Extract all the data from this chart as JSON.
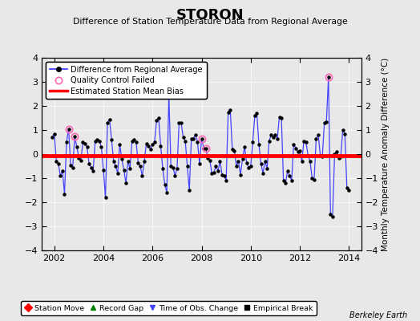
{
  "title": "STORON",
  "subtitle": "Difference of Station Temperature Data from Regional Average",
  "ylabel_right": "Monthly Temperature Anomaly Difference (°C)",
  "bias_value": -0.05,
  "ylim": [
    -4,
    4
  ],
  "xlim": [
    2001.5,
    2014.5
  ],
  "xticks": [
    2002,
    2004,
    2006,
    2008,
    2010,
    2012,
    2014
  ],
  "yticks": [
    -4,
    -3,
    -2,
    -1,
    0,
    1,
    2,
    3,
    4
  ],
  "background_color": "#e8e8e8",
  "plot_bg_color": "#e8e8e8",
  "line_color": "#4444ff",
  "marker_color": "#000000",
  "bias_color": "#ff0000",
  "qc_color": "#ff69b4",
  "watermark": "Berkeley Earth",
  "legend1_entries": [
    {
      "label": "Difference from Regional Average",
      "color": "#4444ff",
      "marker": "o",
      "lw": 1.5
    },
    {
      "label": "Quality Control Failed",
      "color": "#ff69b4",
      "marker": "o",
      "lw": 0
    },
    {
      "label": "Estimated Station Mean Bias",
      "color": "#ff0000",
      "marker": null,
      "lw": 2.5
    }
  ],
  "legend2_entries": [
    {
      "label": "Station Move",
      "color": "#ff0000",
      "marker": "D"
    },
    {
      "label": "Record Gap",
      "color": "#008000",
      "marker": "^"
    },
    {
      "label": "Time of Obs. Change",
      "color": "#4444ff",
      "marker": "v"
    },
    {
      "label": "Empirical Break",
      "color": "#000000",
      "marker": "s"
    }
  ],
  "qc_points": [
    [
      2002.583,
      1.05
    ],
    [
      2002.833,
      0.72
    ],
    [
      2008.0,
      0.65
    ],
    [
      2008.167,
      0.25
    ],
    [
      2013.167,
      3.2
    ]
  ],
  "time_series": [
    [
      2001.917,
      0.7
    ],
    [
      2002.0,
      0.85
    ],
    [
      2002.083,
      -0.3
    ],
    [
      2002.167,
      -0.4
    ],
    [
      2002.25,
      -0.9
    ],
    [
      2002.333,
      -0.7
    ],
    [
      2002.417,
      -1.65
    ],
    [
      2002.5,
      0.5
    ],
    [
      2002.583,
      1.05
    ],
    [
      2002.667,
      -0.45
    ],
    [
      2002.75,
      -0.55
    ],
    [
      2002.833,
      0.72
    ],
    [
      2002.917,
      0.3
    ],
    [
      2003.0,
      -0.15
    ],
    [
      2003.083,
      -0.25
    ],
    [
      2003.167,
      0.5
    ],
    [
      2003.25,
      0.45
    ],
    [
      2003.333,
      0.3
    ],
    [
      2003.417,
      -0.4
    ],
    [
      2003.5,
      -0.55
    ],
    [
      2003.583,
      -0.7
    ],
    [
      2003.667,
      0.55
    ],
    [
      2003.75,
      0.6
    ],
    [
      2003.833,
      0.55
    ],
    [
      2003.917,
      0.3
    ],
    [
      2004.0,
      -0.65
    ],
    [
      2004.083,
      -1.8
    ],
    [
      2004.167,
      1.3
    ],
    [
      2004.25,
      1.45
    ],
    [
      2004.333,
      0.6
    ],
    [
      2004.417,
      -0.3
    ],
    [
      2004.5,
      -0.5
    ],
    [
      2004.583,
      -0.8
    ],
    [
      2004.667,
      0.4
    ],
    [
      2004.75,
      -0.2
    ],
    [
      2004.833,
      -0.65
    ],
    [
      2004.917,
      -1.2
    ],
    [
      2005.0,
      -0.3
    ],
    [
      2005.083,
      -0.6
    ],
    [
      2005.167,
      0.55
    ],
    [
      2005.25,
      0.6
    ],
    [
      2005.333,
      0.5
    ],
    [
      2005.417,
      -0.35
    ],
    [
      2005.5,
      -0.5
    ],
    [
      2005.583,
      -0.9
    ],
    [
      2005.667,
      -0.3
    ],
    [
      2005.75,
      0.45
    ],
    [
      2005.833,
      0.35
    ],
    [
      2005.917,
      0.2
    ],
    [
      2006.0,
      0.4
    ],
    [
      2006.083,
      0.5
    ],
    [
      2006.167,
      1.4
    ],
    [
      2006.25,
      1.5
    ],
    [
      2006.333,
      0.35
    ],
    [
      2006.417,
      -0.6
    ],
    [
      2006.5,
      -1.25
    ],
    [
      2006.583,
      -1.6
    ],
    [
      2006.667,
      2.5
    ],
    [
      2006.75,
      -0.5
    ],
    [
      2006.833,
      -0.55
    ],
    [
      2006.917,
      -0.9
    ],
    [
      2007.0,
      -0.6
    ],
    [
      2007.083,
      1.3
    ],
    [
      2007.167,
      1.3
    ],
    [
      2007.25,
      0.7
    ],
    [
      2007.333,
      0.55
    ],
    [
      2007.417,
      -0.5
    ],
    [
      2007.5,
      -1.5
    ],
    [
      2007.583,
      0.65
    ],
    [
      2007.667,
      0.65
    ],
    [
      2007.75,
      0.8
    ],
    [
      2007.833,
      0.5
    ],
    [
      2007.917,
      -0.4
    ],
    [
      2008.0,
      0.65
    ],
    [
      2008.083,
      0.25
    ],
    [
      2008.167,
      0.25
    ],
    [
      2008.25,
      -0.15
    ],
    [
      2008.333,
      -0.25
    ],
    [
      2008.417,
      -0.8
    ],
    [
      2008.5,
      -0.75
    ],
    [
      2008.583,
      -0.5
    ],
    [
      2008.667,
      -0.7
    ],
    [
      2008.75,
      -0.3
    ],
    [
      2008.833,
      -0.85
    ],
    [
      2008.917,
      -0.9
    ],
    [
      2009.0,
      -1.1
    ],
    [
      2009.083,
      1.75
    ],
    [
      2009.167,
      1.85
    ],
    [
      2009.25,
      0.2
    ],
    [
      2009.333,
      0.15
    ],
    [
      2009.417,
      -0.5
    ],
    [
      2009.5,
      -0.3
    ],
    [
      2009.583,
      -0.85
    ],
    [
      2009.667,
      -0.2
    ],
    [
      2009.75,
      0.3
    ],
    [
      2009.833,
      -0.35
    ],
    [
      2009.917,
      -0.55
    ],
    [
      2010.0,
      -0.5
    ],
    [
      2010.083,
      0.5
    ],
    [
      2010.167,
      1.6
    ],
    [
      2010.25,
      1.7
    ],
    [
      2010.333,
      0.4
    ],
    [
      2010.417,
      -0.4
    ],
    [
      2010.5,
      -0.8
    ],
    [
      2010.583,
      -0.3
    ],
    [
      2010.667,
      -0.6
    ],
    [
      2010.75,
      0.55
    ],
    [
      2010.833,
      0.8
    ],
    [
      2010.917,
      0.7
    ],
    [
      2011.0,
      0.8
    ],
    [
      2011.083,
      0.65
    ],
    [
      2011.167,
      1.55
    ],
    [
      2011.25,
      1.5
    ],
    [
      2011.333,
      -1.1
    ],
    [
      2011.417,
      -1.2
    ],
    [
      2011.5,
      -0.7
    ],
    [
      2011.583,
      -0.9
    ],
    [
      2011.667,
      -1.1
    ],
    [
      2011.75,
      0.4
    ],
    [
      2011.833,
      0.25
    ],
    [
      2011.917,
      0.1
    ],
    [
      2012.0,
      0.15
    ],
    [
      2012.083,
      -0.3
    ],
    [
      2012.167,
      0.55
    ],
    [
      2012.25,
      0.5
    ],
    [
      2012.333,
      -0.05
    ],
    [
      2012.417,
      -0.3
    ],
    [
      2012.5,
      -1.0
    ],
    [
      2012.583,
      -1.05
    ],
    [
      2012.667,
      0.65
    ],
    [
      2012.75,
      0.8
    ],
    [
      2012.833,
      -0.05
    ],
    [
      2012.917,
      -0.1
    ],
    [
      2013.0,
      1.3
    ],
    [
      2013.083,
      1.35
    ],
    [
      2013.167,
      3.2
    ],
    [
      2013.25,
      -2.5
    ],
    [
      2013.333,
      -2.6
    ],
    [
      2013.417,
      0.0
    ],
    [
      2013.5,
      0.1
    ],
    [
      2013.583,
      -0.15
    ],
    [
      2013.667,
      -0.1
    ],
    [
      2013.75,
      1.0
    ],
    [
      2013.833,
      0.85
    ],
    [
      2013.917,
      -1.4
    ],
    [
      2014.0,
      -1.5
    ]
  ]
}
